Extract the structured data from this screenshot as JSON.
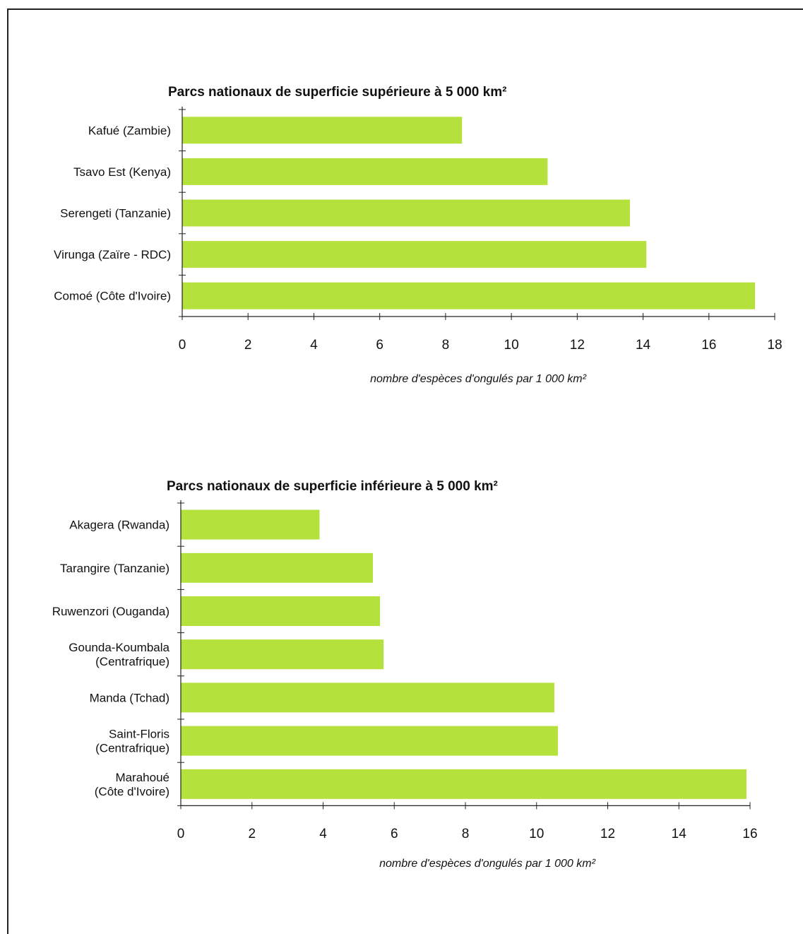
{
  "chart_data": [
    {
      "type": "bar",
      "orientation": "horizontal",
      "title": "Parcs nationaux de superficie supérieure à 5 000 km²",
      "xlabel": "nombre d'espèces d'ongulés par 1 000 km²",
      "categories": [
        [
          "Kafué (Zambie)"
        ],
        [
          "Tsavo Est (Kenya)"
        ],
        [
          "Serengeti (Tanzanie)"
        ],
        [
          "Virunga (Zaïre - RDC)"
        ],
        [
          "Comoé (Côte d'Ivoire)"
        ]
      ],
      "values": [
        8.5,
        11.1,
        13.6,
        14.1,
        17.4
      ],
      "xlim": [
        0,
        18
      ],
      "xticks": [
        "0",
        "2",
        "4",
        "6",
        "8",
        "10",
        "12",
        "14",
        "16",
        "18"
      ],
      "bar_color": "#b5e13c",
      "grid": false
    },
    {
      "type": "bar",
      "orientation": "horizontal",
      "title": "Parcs nationaux de superficie inférieure à 5 000 km²",
      "xlabel": "nombre d'espèces d'ongulés par 1 000 km²",
      "categories": [
        [
          "Akagera (Rwanda)"
        ],
        [
          "Tarangire (Tanzanie)"
        ],
        [
          "Ruwenzori (Ouganda)"
        ],
        [
          "Gounda-Koumbala",
          "(Centrafrique)"
        ],
        [
          "Manda (Tchad)"
        ],
        [
          "Saint-Floris",
          "(Centrafrique)"
        ],
        [
          "Marahoué",
          "(Côte d'Ivoire)"
        ]
      ],
      "values": [
        3.9,
        5.4,
        5.6,
        5.7,
        10.5,
        10.6,
        15.9
      ],
      "xlim": [
        0,
        16
      ],
      "xticks": [
        "0",
        "2",
        "4",
        "6",
        "8",
        "10",
        "12",
        "14",
        "16"
      ],
      "bar_color": "#b5e13c",
      "grid": false
    }
  ]
}
